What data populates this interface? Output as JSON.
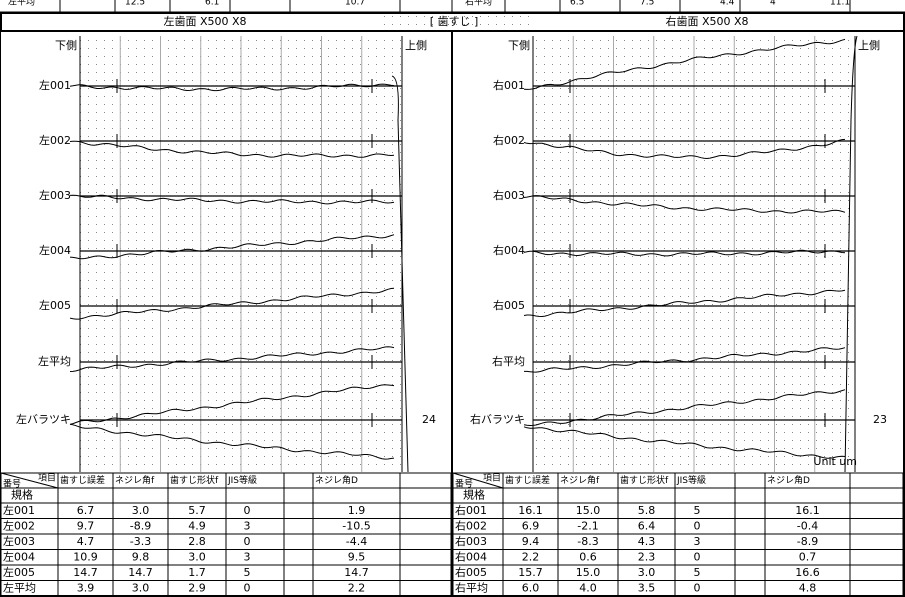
{
  "top_strip": {
    "left": [
      "左平均",
      "12.5",
      "6.1",
      "10.7"
    ],
    "right": [
      "右平均",
      "6.5",
      "7.5",
      "4.4",
      "4",
      "11.1"
    ]
  },
  "header": {
    "left": "左歯面 X500 X8",
    "center": "[ 歯すじ ]",
    "right": "右歯面 X500 X8"
  },
  "panels": [
    {
      "lower": "下側",
      "upper": "上側",
      "rows": [
        "左001",
        "左002",
        "左003",
        "左004",
        "左005",
        "左平均",
        "左バラツキ"
      ],
      "count": "24"
    },
    {
      "lower": "下側",
      "upper": "上側",
      "rows": [
        "右001",
        "右002",
        "右003",
        "右004",
        "右005",
        "右平均",
        "右バラツキ"
      ],
      "count": "23",
      "unit": "Unit um"
    }
  ],
  "tables": [
    {
      "corner": "項目",
      "corner_sub": "番号",
      "columns": [
        "歯すじ誤差",
        "ネジレ角f",
        "歯すじ形状f",
        "JIS等級",
        "ネジレ角D"
      ],
      "spec": "規格",
      "rows": [
        [
          "左001",
          "6.7",
          "3.0",
          "5.7",
          "0",
          "1.9"
        ],
        [
          "左002",
          "9.7",
          "-8.9",
          "4.9",
          "3",
          "-10.5"
        ],
        [
          "左003",
          "4.7",
          "-3.3",
          "2.8",
          "0",
          "-4.4"
        ],
        [
          "左004",
          "10.9",
          "9.8",
          "3.0",
          "3",
          "9.5"
        ],
        [
          "左005",
          "14.7",
          "14.7",
          "1.7",
          "5",
          "14.7"
        ],
        [
          "左平均",
          "3.9",
          "3.0",
          "2.9",
          "0",
          "2.2"
        ]
      ]
    },
    {
      "corner": "項目",
      "corner_sub": "番号",
      "columns": [
        "歯すじ誤差",
        "ネジレ角f",
        "歯すじ形状f",
        "JIS等級",
        "ネジレ角D"
      ],
      "spec": "規格",
      "rows": [
        [
          "右001",
          "16.1",
          "15.0",
          "5.8",
          "5",
          "16.1"
        ],
        [
          "右002",
          "6.9",
          "-2.1",
          "6.4",
          "0",
          "-0.4"
        ],
        [
          "右003",
          "9.4",
          "-8.3",
          "4.3",
          "3",
          "-8.9"
        ],
        [
          "右004",
          "2.2",
          "0.6",
          "2.3",
          "0",
          "0.7"
        ],
        [
          "右005",
          "15.7",
          "15.0",
          "3.0",
          "5",
          "16.6"
        ],
        [
          "右平均",
          "6.0",
          "4.0",
          "3.5",
          "0",
          "4.8"
        ]
      ]
    }
  ]
}
